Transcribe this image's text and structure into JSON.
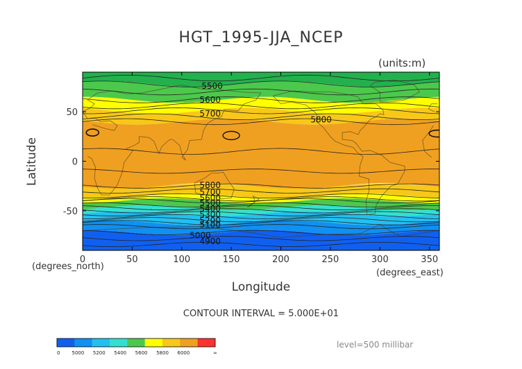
{
  "chart_data": {
    "type": "contour-map",
    "title": "HGT_1995-JJA_NCEP",
    "units": "(units:m)",
    "xlabel": "Longitude",
    "ylabel": "Latitude",
    "x_unit": "(degrees_east)",
    "y_unit": "(degrees_north)",
    "xlim": [
      0,
      360
    ],
    "ylim": [
      -90,
      90
    ],
    "x_ticks": [
      0,
      50,
      100,
      150,
      200,
      250,
      300,
      350
    ],
    "y_ticks": [
      50,
      0,
      -50
    ],
    "level_bands": [
      {
        "lat_max": 90,
        "lat_min": 78,
        "color": "#22b14c"
      },
      {
        "lat_max": 78,
        "lat_min": 62,
        "color": "#4cc84c"
      },
      {
        "lat_max": 62,
        "lat_min": 51,
        "color": "#ffff00"
      },
      {
        "lat_max": 51,
        "lat_min": 40,
        "color": "#f8c818"
      },
      {
        "lat_max": 40,
        "lat_min": -25,
        "color": "#f0a020"
      },
      {
        "lat_max": -25,
        "lat_min": -35,
        "color": "#f8c818"
      },
      {
        "lat_max": -35,
        "lat_min": -40,
        "color": "#ffff00"
      },
      {
        "lat_max": -40,
        "lat_min": -47,
        "color": "#4cc84c"
      },
      {
        "lat_max": -47,
        "lat_min": -53,
        "color": "#33e0d0"
      },
      {
        "lat_max": -53,
        "lat_min": -62,
        "color": "#22c0f0"
      },
      {
        "lat_max": -62,
        "lat_min": -72,
        "color": "#1090f0"
      },
      {
        "lat_max": -72,
        "lat_min": -90,
        "color": "#1060f0"
      }
    ],
    "contour_labels": [
      {
        "text": "5500",
        "lon": 120,
        "lat": 76
      },
      {
        "text": "5600",
        "lon": 118,
        "lat": 62
      },
      {
        "text": "5700",
        "lon": 118,
        "lat": 48
      },
      {
        "text": "5800",
        "lon": 230,
        "lat": 42
      },
      {
        "text": "5800",
        "lon": 118,
        "lat": -24
      },
      {
        "text": "5700",
        "lon": 118,
        "lat": -31
      },
      {
        "text": "5600",
        "lon": 118,
        "lat": -37
      },
      {
        "text": "5500",
        "lon": 118,
        "lat": -42
      },
      {
        "text": "5400",
        "lon": 118,
        "lat": -48
      },
      {
        "text": "5300",
        "lon": 118,
        "lat": -54
      },
      {
        "text": "5200",
        "lon": 118,
        "lat": -60
      },
      {
        "text": "5100",
        "lon": 118,
        "lat": -64
      },
      {
        "text": "5000",
        "lon": 108,
        "lat": -75
      },
      {
        "text": "4900",
        "lon": 118,
        "lat": -81
      }
    ],
    "colorbar": {
      "segments": [
        {
          "color": "#1060f0"
        },
        {
          "color": "#1090f0"
        },
        {
          "color": "#22c0f0"
        },
        {
          "color": "#33e0d0"
        },
        {
          "color": "#4cc84c"
        },
        {
          "color": "#ffff00"
        },
        {
          "color": "#f8c818"
        },
        {
          "color": "#f0a020"
        },
        {
          "color": "#ff3030"
        }
      ],
      "tick_labels": [
        "0",
        "5000",
        "5200",
        "5400",
        "5600",
        "5800",
        "6000",
        "∞"
      ]
    },
    "contour_interval": "CONTOUR INTERVAL = 5.000E+01",
    "level": "level=500 millibar"
  }
}
